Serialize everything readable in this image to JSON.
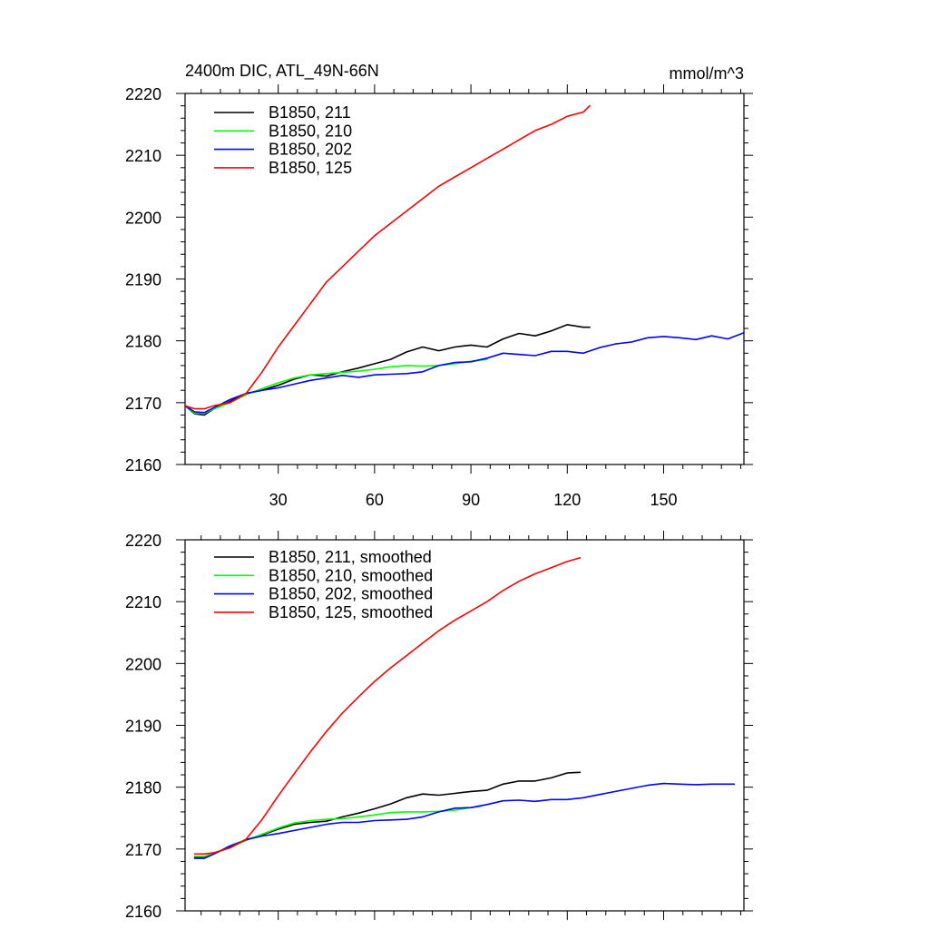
{
  "figure": {
    "title_left": "2400m DIC, ATL_49N-66N",
    "title_right": "mmol/m^3"
  },
  "chart_data": [
    {
      "type": "line",
      "title": "2400m DIC, ATL_49N-66N",
      "units": "mmol/m^3",
      "xlim": [
        1,
        175
      ],
      "ylim": [
        2160,
        2220
      ],
      "xticks": [
        30,
        60,
        90,
        120,
        150
      ],
      "yticks": [
        2160,
        2170,
        2180,
        2190,
        2200,
        2210,
        2220
      ],
      "show_x_tick_labels": true,
      "grid": false,
      "legend_position": "top-left",
      "series": [
        {
          "name": "B1850, 211",
          "color": "#000000",
          "x": [
            1,
            4,
            7,
            10,
            15,
            20,
            25,
            30,
            35,
            40,
            45,
            50,
            55,
            60,
            65,
            70,
            75,
            80,
            85,
            90,
            95,
            100,
            105,
            110,
            115,
            120,
            125,
            127
          ],
          "y": [
            2169.5,
            2168.2,
            2168.0,
            2169.0,
            2170.2,
            2171.5,
            2172.0,
            2172.8,
            2173.8,
            2174.5,
            2174.3,
            2175.0,
            2175.6,
            2176.3,
            2177.0,
            2178.2,
            2179.0,
            2178.4,
            2179.0,
            2179.3,
            2179.0,
            2180.3,
            2181.2,
            2180.8,
            2181.6,
            2182.6,
            2182.2,
            2182.2
          ]
        },
        {
          "name": "B1850, 210",
          "color": "#00ff00",
          "x": [
            1,
            4,
            7,
            10,
            15,
            20,
            25,
            30,
            35,
            40,
            45,
            50,
            55,
            60,
            65,
            70,
            75,
            80,
            85,
            90,
            95
          ],
          "y": [
            2169.5,
            2168.3,
            2168.3,
            2169.0,
            2170.0,
            2171.3,
            2172.3,
            2173.2,
            2174.0,
            2174.5,
            2174.7,
            2174.9,
            2175.1,
            2175.4,
            2175.8,
            2176.0,
            2175.9,
            2176.0,
            2176.3,
            2176.7,
            2177.0
          ]
        },
        {
          "name": "B1850, 202",
          "color": "#0000ff",
          "x": [
            1,
            4,
            7,
            10,
            15,
            20,
            25,
            30,
            35,
            40,
            45,
            50,
            55,
            60,
            65,
            70,
            75,
            80,
            85,
            90,
            95,
            100,
            105,
            110,
            115,
            120,
            125,
            130,
            135,
            140,
            145,
            150,
            155,
            160,
            165,
            170,
            175
          ],
          "y": [
            2169.5,
            2168.5,
            2168.4,
            2169.2,
            2170.5,
            2171.5,
            2172.0,
            2172.4,
            2173.0,
            2173.6,
            2174.0,
            2174.4,
            2174.1,
            2174.5,
            2174.6,
            2174.7,
            2175.0,
            2176.0,
            2176.5,
            2176.6,
            2177.2,
            2178.0,
            2177.8,
            2177.6,
            2178.3,
            2178.3,
            2178.0,
            2178.9,
            2179.5,
            2179.8,
            2180.5,
            2180.7,
            2180.5,
            2180.2,
            2180.8,
            2180.3,
            2181.3
          ]
        },
        {
          "name": "B1850, 125",
          "color": "#ff0000",
          "x": [
            1,
            4,
            7,
            10,
            15,
            20,
            25,
            30,
            35,
            40,
            45,
            50,
            55,
            60,
            65,
            70,
            75,
            80,
            85,
            90,
            95,
            100,
            105,
            110,
            115,
            120,
            125,
            127
          ],
          "y": [
            2169.5,
            2169.0,
            2169.0,
            2169.5,
            2170.0,
            2171.5,
            2175.0,
            2179.0,
            2182.5,
            2186.0,
            2189.5,
            2192.0,
            2194.5,
            2197.0,
            2199.0,
            2201.0,
            2203.0,
            2205.0,
            2206.5,
            2208.0,
            2209.5,
            2211.0,
            2212.5,
            2214.0,
            2215.0,
            2216.3,
            2217.0,
            2218.0
          ]
        }
      ]
    },
    {
      "type": "line",
      "xlim": [
        1,
        175
      ],
      "ylim": [
        2160,
        2220
      ],
      "xticks": [
        30,
        60,
        90,
        120,
        150
      ],
      "yticks": [
        2160,
        2170,
        2180,
        2190,
        2200,
        2210,
        2220
      ],
      "show_x_tick_labels": false,
      "grid": false,
      "legend_position": "top-left",
      "series": [
        {
          "name": "B1850, 211, smoothed",
          "color": "#000000",
          "x": [
            4,
            7,
            10,
            15,
            20,
            25,
            30,
            35,
            40,
            45,
            50,
            55,
            60,
            65,
            70,
            75,
            80,
            85,
            90,
            95,
            100,
            105,
            110,
            115,
            120,
            124
          ],
          "y": [
            2168.7,
            2168.7,
            2169.3,
            2170.3,
            2171.5,
            2172.3,
            2173.2,
            2174.0,
            2174.3,
            2174.5,
            2175.2,
            2175.8,
            2176.5,
            2177.3,
            2178.3,
            2178.9,
            2178.7,
            2179.0,
            2179.3,
            2179.5,
            2180.5,
            2181.0,
            2181.0,
            2181.5,
            2182.3,
            2182.4
          ]
        },
        {
          "name": "B1850, 210, smoothed",
          "color": "#00ff00",
          "x": [
            4,
            7,
            10,
            15,
            20,
            25,
            30,
            35,
            40,
            45,
            50,
            55,
            60,
            65,
            70,
            75,
            80,
            85,
            90,
            93
          ],
          "y": [
            2168.8,
            2168.8,
            2169.3,
            2170.2,
            2171.4,
            2172.4,
            2173.4,
            2174.2,
            2174.6,
            2174.8,
            2174.9,
            2175.2,
            2175.5,
            2175.9,
            2176.0,
            2176.0,
            2176.1,
            2176.3,
            2176.7,
            2176.9
          ]
        },
        {
          "name": "B1850, 202, smoothed",
          "color": "#0000ff",
          "x": [
            4,
            7,
            10,
            15,
            20,
            25,
            30,
            35,
            40,
            45,
            50,
            55,
            60,
            65,
            70,
            75,
            80,
            85,
            90,
            95,
            100,
            105,
            110,
            115,
            120,
            125,
            130,
            135,
            140,
            145,
            150,
            155,
            160,
            165,
            170,
            172
          ],
          "y": [
            2168.5,
            2168.5,
            2169.2,
            2170.5,
            2171.5,
            2172.1,
            2172.5,
            2173.0,
            2173.5,
            2174.0,
            2174.3,
            2174.3,
            2174.6,
            2174.7,
            2174.8,
            2175.2,
            2176.0,
            2176.6,
            2176.7,
            2177.2,
            2177.8,
            2177.9,
            2177.7,
            2178.0,
            2178.0,
            2178.3,
            2178.8,
            2179.3,
            2179.8,
            2180.3,
            2180.6,
            2180.5,
            2180.4,
            2180.5,
            2180.5,
            2180.5
          ]
        },
        {
          "name": "B1850, 125, smoothed",
          "color": "#ff0000",
          "x": [
            4,
            7,
            10,
            15,
            20,
            25,
            30,
            35,
            40,
            45,
            50,
            55,
            60,
            65,
            70,
            75,
            80,
            85,
            90,
            95,
            100,
            105,
            110,
            115,
            120,
            124
          ],
          "y": [
            2169.2,
            2169.2,
            2169.4,
            2170.2,
            2171.6,
            2174.8,
            2178.6,
            2182.2,
            2185.7,
            2189.0,
            2192.0,
            2194.6,
            2197.1,
            2199.3,
            2201.3,
            2203.3,
            2205.3,
            2207.0,
            2208.5,
            2210.0,
            2211.8,
            2213.3,
            2214.5,
            2215.5,
            2216.5,
            2217.1
          ]
        }
      ]
    }
  ]
}
